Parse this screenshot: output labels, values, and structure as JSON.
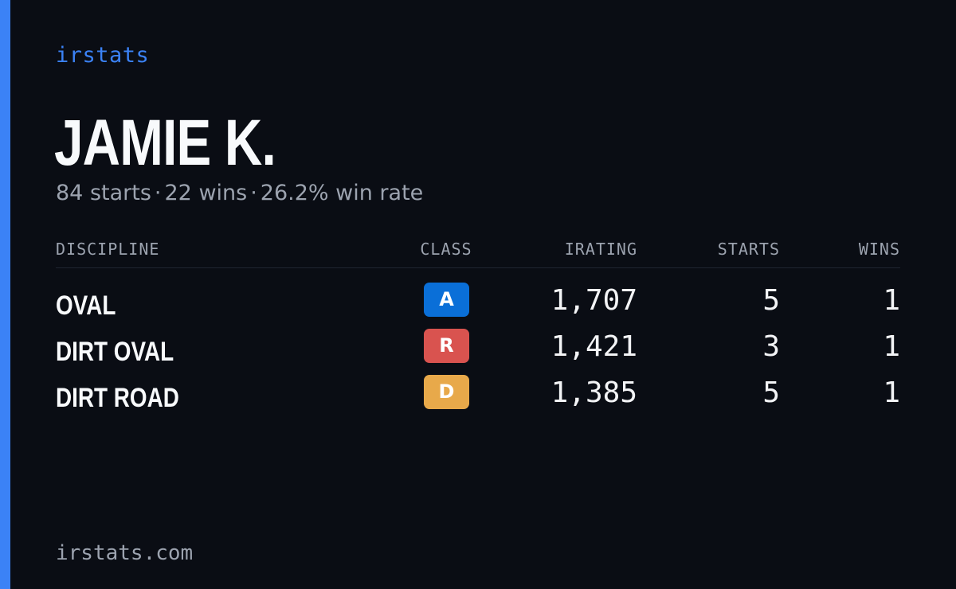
{
  "brand": {
    "label": "irstats"
  },
  "driver": {
    "name": "JAMIE K.",
    "starts_text": "84 starts",
    "wins_text": "22 wins",
    "win_rate_text": "26.2% win rate",
    "separator": "·"
  },
  "table": {
    "headers": {
      "discipline": "DISCIPLINE",
      "class": "CLASS",
      "irating": "IRATING",
      "starts": "STARTS",
      "wins": "WINS"
    },
    "rows": [
      {
        "discipline": "OVAL",
        "class": "A",
        "class_color": "#0a6fd8",
        "irating": "1,707",
        "starts": "5",
        "wins": "1"
      },
      {
        "discipline": "DIRT OVAL",
        "class": "R",
        "class_color": "#d9534f",
        "irating": "1,421",
        "starts": "3",
        "wins": "1"
      },
      {
        "discipline": "DIRT ROAD",
        "class": "D",
        "class_color": "#e8a94a",
        "irating": "1,385",
        "starts": "5",
        "wins": "1"
      }
    ]
  },
  "footer": {
    "url": "irstats.com"
  },
  "colors": {
    "accent": "#3b82f6",
    "background": "#0a0d14",
    "muted": "#9ca3af"
  }
}
